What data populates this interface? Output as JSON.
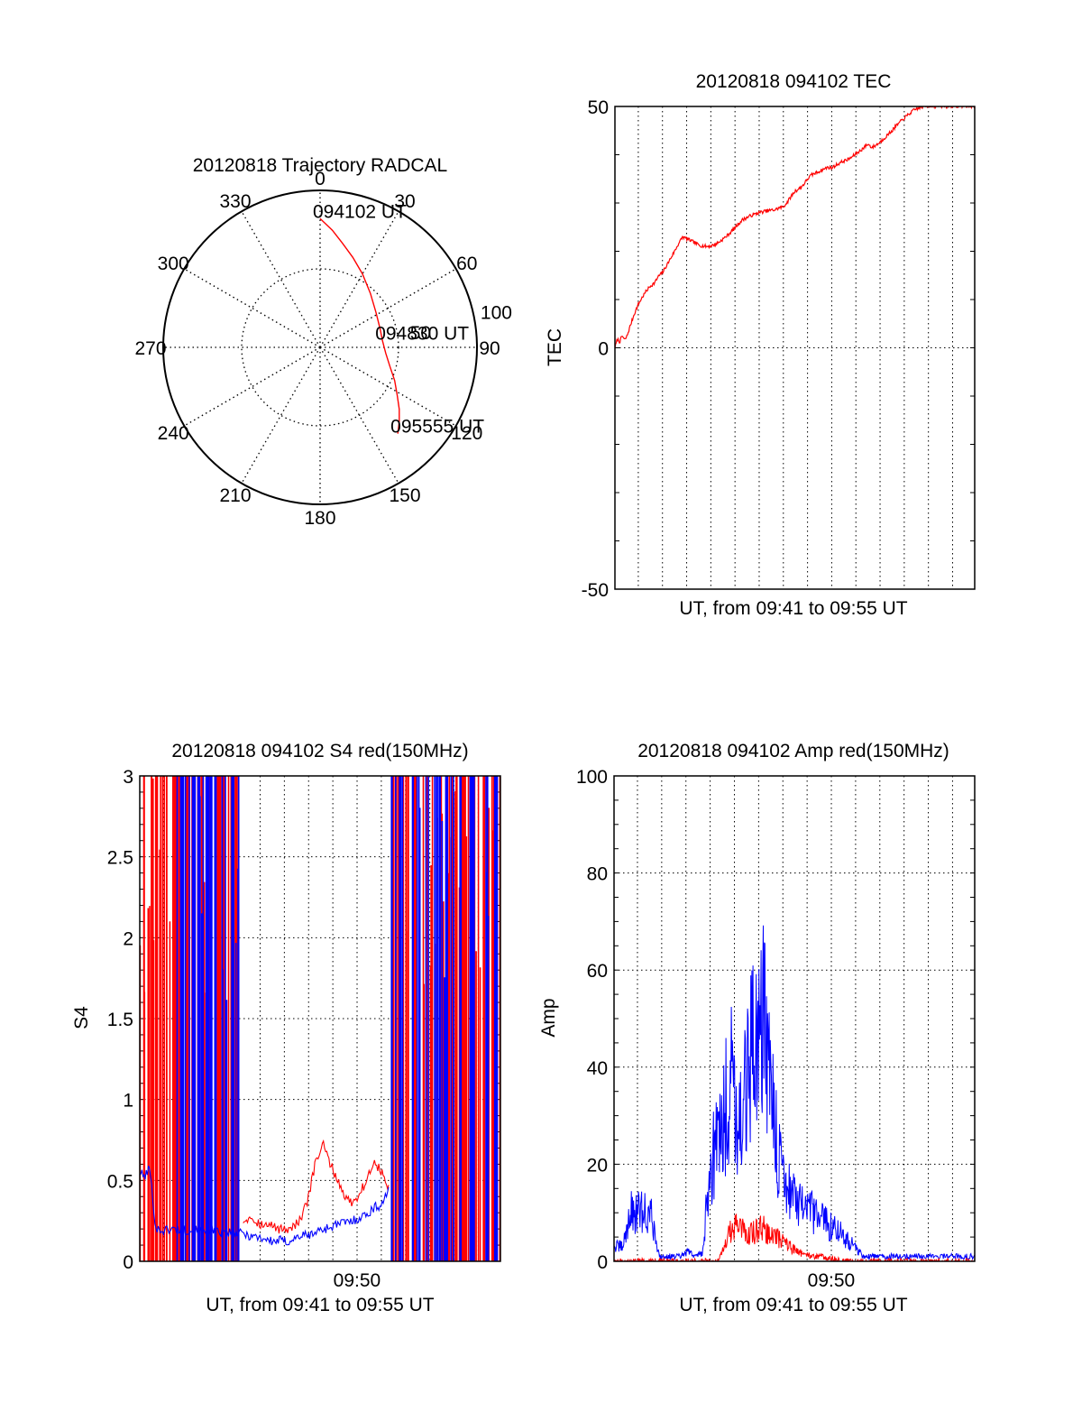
{
  "chart_data": [
    {
      "type": "polar",
      "title": "20120818 Trajectory RADCAL",
      "azimuth_labels": [
        "0",
        "30",
        "60",
        "90",
        "120",
        "150",
        "180",
        "210",
        "240",
        "270",
        "300",
        "330"
      ],
      "radial_labels": [
        "50",
        "100"
      ],
      "rlim": [
        0,
        100
      ],
      "grid": true,
      "series": [
        {
          "color": "#ff0000",
          "points": [
            {
              "az": 0,
              "r": 82
            },
            {
              "az": 6,
              "r": 75
            },
            {
              "az": 12,
              "r": 68
            },
            {
              "az": 20,
              "r": 61
            },
            {
              "az": 30,
              "r": 54
            },
            {
              "az": 43,
              "r": 47
            },
            {
              "az": 58,
              "r": 42
            },
            {
              "az": 73,
              "r": 40
            },
            {
              "az": 84,
              "r": 40
            },
            {
              "az": 95,
              "r": 42
            },
            {
              "az": 105,
              "r": 46
            },
            {
              "az": 114,
              "r": 52
            },
            {
              "az": 122,
              "r": 58
            },
            {
              "az": 128,
              "r": 64
            },
            {
              "az": 133,
              "r": 69
            },
            {
              "az": 138,
              "r": 74
            }
          ]
        }
      ],
      "annotations": [
        {
          "text": "094102 UT",
          "az": 0,
          "r": 82
        },
        {
          "text": "094830 UT",
          "az": 84,
          "r": 40
        },
        {
          "text": "095555 UT",
          "az": 138,
          "r": 74
        }
      ]
    },
    {
      "type": "line",
      "title": "20120818 094102 TEC",
      "xlabel": "UT, from 09:41 to 09:55 UT",
      "ylabel": "TEC",
      "xlim": [
        9.6839,
        9.9319
      ],
      "ylim": [
        -50,
        50
      ],
      "yticks": [
        -50,
        0,
        50
      ],
      "grid": true,
      "series": [
        {
          "color": "#ff0000",
          "x": [
            9.6839,
            9.6856,
            9.6872,
            9.6889,
            9.6906,
            9.6922,
            9.6944,
            9.6972,
            9.7,
            9.7028,
            9.7056,
            9.7083,
            9.7111,
            9.7139,
            9.7167,
            9.7194,
            9.7222,
            9.725,
            9.7278,
            9.7306,
            9.7333,
            9.7361,
            9.7389,
            9.7417,
            9.7444,
            9.7472,
            9.75,
            9.7528,
            9.7556,
            9.7583,
            9.7611,
            9.7639,
            9.7667,
            9.7694,
            9.7722,
            9.775,
            9.7778,
            9.7806,
            9.7833,
            9.7861,
            9.7889,
            9.7917,
            9.7944,
            9.7972,
            9.8,
            9.8028,
            9.8056,
            9.8083,
            9.8111,
            9.8139,
            9.8167,
            9.8194,
            9.8222,
            9.825,
            9.8278,
            9.8306,
            9.8333,
            9.8361,
            9.8389,
            9.8417,
            9.8444,
            9.8472,
            9.85,
            9.8528,
            9.8556,
            9.8583,
            9.8611,
            9.8639,
            9.8667,
            9.8694,
            9.8722,
            9.875,
            9.8778,
            9.8806,
            9.8833,
            9.8861,
            9.8889,
            9.8917,
            9.8944,
            9.8972,
            9.9,
            9.9028,
            9.9056,
            9.9083,
            9.9111,
            9.9139,
            9.9167,
            9.9194,
            9.9222,
            9.925,
            9.9278,
            9.9306,
            9.9319
          ],
          "y": [
            0.0,
            1.8,
            1.2,
            2.5,
            1.6,
            2.4,
            4.5,
            7.0,
            9.0,
            10.5,
            11.8,
            12.8,
            13.4,
            14.8,
            15.6,
            17.0,
            18.5,
            20.0,
            21.6,
            23.0,
            22.6,
            22.2,
            21.8,
            21.3,
            21.1,
            21.0,
            21.1,
            21.4,
            21.9,
            22.5,
            23.2,
            24.0,
            24.9,
            25.8,
            26.6,
            27.0,
            27.4,
            27.7,
            28.0,
            28.2,
            28.4,
            28.5,
            28.6,
            29.0,
            29.2,
            30.2,
            31.5,
            32.5,
            33.0,
            33.8,
            35.0,
            35.8,
            36.2,
            36.6,
            37.0,
            37.4,
            37.3,
            37.8,
            38.3,
            38.7,
            39.0,
            39.5,
            40.2,
            40.8,
            41.5,
            42.2,
            41.5,
            42.0,
            42.6,
            43.4,
            44.2,
            45.0,
            46.0,
            46.8,
            47.6,
            48.3,
            49.0,
            49.5,
            49.8,
            50.0,
            50.1,
            50.1,
            50.1,
            50.1,
            50.1,
            50.1,
            50.1,
            50.1,
            50.1,
            50.1,
            50.1,
            50.1,
            50.1
          ]
        }
      ]
    },
    {
      "type": "line",
      "title": "20120818 094102 S4 red(150MHz)",
      "xlabel": "UT, from 09:41 to 09:55 UT",
      "ylabel": "S4",
      "xlim": [
        9.6839,
        9.9319
      ],
      "ylim": [
        0,
        3
      ],
      "yticks": [
        0,
        0.5,
        1,
        1.5,
        2,
        2.5,
        3
      ],
      "yticklabels": [
        "0",
        "0.5",
        "1",
        "1.5",
        "2",
        "2.5",
        "3"
      ],
      "xticks": [
        9.8333
      ],
      "xticklabels": [
        "09:50"
      ],
      "grid": true,
      "series": [
        {
          "color": "#ff0000",
          "x": [
            9.755,
            9.76,
            9.765,
            9.77,
            9.775,
            9.78,
            9.785,
            9.79,
            9.795,
            9.8,
            9.805,
            9.81,
            9.815,
            9.82,
            9.825,
            9.83,
            9.835,
            9.84,
            9.845,
            9.85,
            9.855
          ],
          "y": [
            0.25,
            0.28,
            0.24,
            0.22,
            0.22,
            0.2,
            0.2,
            0.22,
            0.26,
            0.4,
            0.62,
            0.72,
            0.6,
            0.5,
            0.4,
            0.36,
            0.42,
            0.5,
            0.62,
            0.55,
            0.45
          ]
        },
        {
          "color": "#0000ff",
          "x": [
            9.6839,
            9.6872,
            9.6906,
            9.695,
            9.7,
            9.705,
            9.755,
            9.76,
            9.765,
            9.77,
            9.775,
            9.78,
            9.785,
            9.79,
            9.795,
            9.8,
            9.805,
            9.81,
            9.815,
            9.82,
            9.825,
            9.83,
            9.835,
            9.84,
            9.845,
            9.85,
            9.855
          ],
          "y": [
            0.55,
            0.52,
            0.58,
            0.2,
            0.19,
            0.2,
            0.17,
            0.16,
            0.15,
            0.14,
            0.12,
            0.13,
            0.12,
            0.14,
            0.16,
            0.16,
            0.18,
            0.2,
            0.21,
            0.23,
            0.24,
            0.25,
            0.27,
            0.29,
            0.33,
            0.35,
            0.45
          ]
        }
      ]
    },
    {
      "type": "line",
      "title": "20120818 094102 Amp red(150MHz)",
      "xlabel": "UT, from 09:41 to 09:55 UT",
      "ylabel": "Amp",
      "xlim": [
        9.6839,
        9.9319
      ],
      "ylim": [
        0,
        100
      ],
      "yticks": [
        0,
        20,
        40,
        60,
        80,
        100
      ],
      "xticks": [
        9.8333
      ],
      "xticklabels": [
        "09:50"
      ],
      "grid": true,
      "series": [
        {
          "color": "#ff0000",
          "x": [
            9.6839,
            9.755,
            9.76,
            9.765,
            9.77,
            9.775,
            9.78,
            9.785,
            9.79,
            9.795,
            9.8,
            9.805,
            9.81,
            9.815,
            9.82,
            9.825,
            9.83,
            9.835,
            9.84,
            9.9319
          ],
          "y": [
            0,
            0,
            3,
            7,
            7,
            6,
            6,
            7,
            6,
            5,
            4,
            3,
            2,
            1.5,
            1,
            1,
            0.8,
            0.5,
            0,
            0
          ]
        },
        {
          "color": "#0000ff",
          "x": [
            9.6839,
            9.69,
            9.695,
            9.7,
            9.705,
            9.71,
            9.715,
            9.72,
            9.725,
            9.73,
            9.735,
            9.74,
            9.745,
            9.75,
            9.755,
            9.76,
            9.765,
            9.77,
            9.775,
            9.78,
            9.785,
            9.79,
            9.795,
            9.8,
            9.805,
            9.81,
            9.815,
            9.82,
            9.825,
            9.83,
            9.835,
            9.84,
            9.845,
            9.85,
            9.855,
            9.86,
            9.865,
            9.87,
            9.9319
          ],
          "y": [
            3,
            3,
            10,
            10,
            10,
            9,
            1,
            1,
            1,
            1,
            2,
            1,
            2,
            20,
            25,
            30,
            40,
            28,
            35,
            45,
            55,
            40,
            25,
            18,
            15,
            12,
            10,
            10,
            9,
            8,
            7,
            6,
            4,
            3,
            1,
            1,
            1,
            1,
            1
          ]
        }
      ]
    }
  ]
}
